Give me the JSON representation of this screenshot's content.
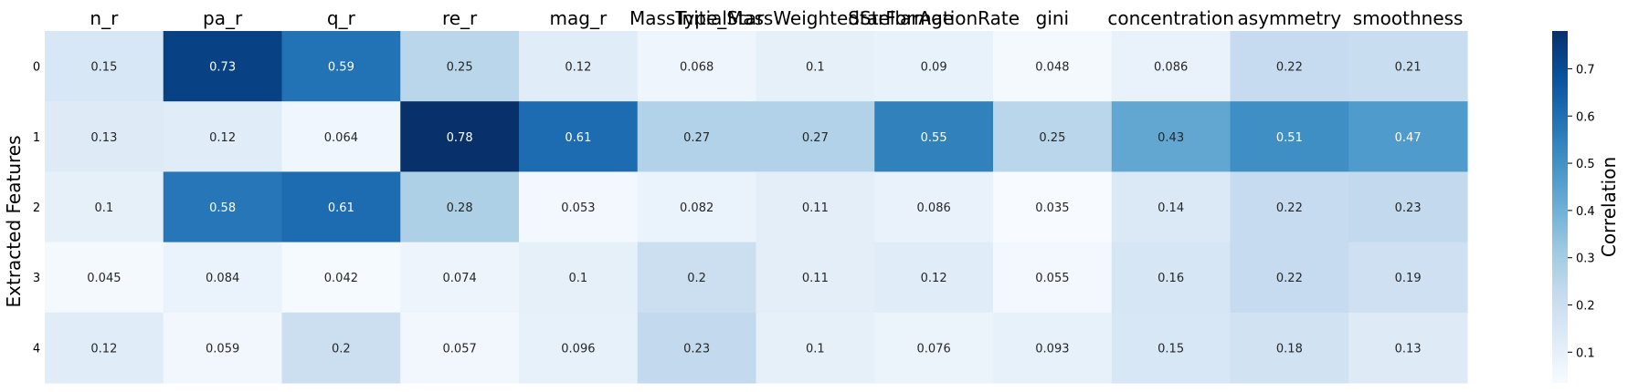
{
  "chart_data": {
    "type": "heatmap",
    "title": "",
    "xlabel": "",
    "ylabel": "Extracted Features",
    "columns": [
      "n_r",
      "pa_r",
      "q_r",
      "re_r",
      "mag_r",
      "MassType_Star",
      "InitialMassWeightedStellarAge",
      "StarFormationRate",
      "gini",
      "concentration",
      "asymmetry",
      "smoothness"
    ],
    "rows": [
      "0",
      "1",
      "2",
      "3",
      "4"
    ],
    "values": [
      [
        0.15,
        0.73,
        0.59,
        0.25,
        0.12,
        0.068,
        0.1,
        0.09,
        0.048,
        0.086,
        0.22,
        0.21
      ],
      [
        0.13,
        0.12,
        0.064,
        0.78,
        0.61,
        0.27,
        0.27,
        0.55,
        0.25,
        0.43,
        0.51,
        0.47
      ],
      [
        0.1,
        0.58,
        0.61,
        0.28,
        0.053,
        0.082,
        0.11,
        0.086,
        0.035,
        0.14,
        0.22,
        0.23
      ],
      [
        0.045,
        0.084,
        0.042,
        0.074,
        0.1,
        0.2,
        0.11,
        0.12,
        0.055,
        0.16,
        0.22,
        0.19
      ],
      [
        0.12,
        0.059,
        0.2,
        0.057,
        0.096,
        0.23,
        0.1,
        0.076,
        0.093,
        0.15,
        0.18,
        0.13
      ]
    ],
    "labels": [
      [
        "0.15",
        "0.73",
        "0.59",
        "0.25",
        "0.12",
        "0.068",
        "0.1",
        "0.09",
        "0.048",
        "0.086",
        "0.22",
        "0.21"
      ],
      [
        "0.13",
        "0.12",
        "0.064",
        "0.78",
        "0.61",
        "0.27",
        "0.27",
        "0.55",
        "0.25",
        "0.43",
        "0.51",
        "0.47"
      ],
      [
        "0.1",
        "0.58",
        "0.61",
        "0.28",
        "0.053",
        "0.082",
        "0.11",
        "0.086",
        "0.035",
        "0.14",
        "0.22",
        "0.23"
      ],
      [
        "0.045",
        "0.084",
        "0.042",
        "0.074",
        "0.1",
        "0.2",
        "0.11",
        "0.12",
        "0.055",
        "0.16",
        "0.22",
        "0.19"
      ],
      [
        "0.12",
        "0.059",
        "0.2",
        "0.057",
        "0.096",
        "0.23",
        "0.1",
        "0.076",
        "0.093",
        "0.15",
        "0.18",
        "0.13"
      ]
    ],
    "colormap": "Blues",
    "colormap_stops": [
      "#f7fbff",
      "#deebf7",
      "#c6dbef",
      "#9ecae1",
      "#6baed6",
      "#4292c6",
      "#2171b5",
      "#08519c",
      "#08306b"
    ],
    "vmin": 0.035,
    "vmax": 0.78,
    "colorbar": {
      "label": "Correlation",
      "ticks": [
        0.1,
        0.2,
        0.3,
        0.4,
        0.5,
        0.6,
        0.7
      ],
      "tick_labels": [
        "0.1",
        "0.2",
        "0.3",
        "0.4",
        "0.5",
        "0.6",
        "0.7"
      ]
    },
    "grid": false,
    "legend": "none"
  }
}
